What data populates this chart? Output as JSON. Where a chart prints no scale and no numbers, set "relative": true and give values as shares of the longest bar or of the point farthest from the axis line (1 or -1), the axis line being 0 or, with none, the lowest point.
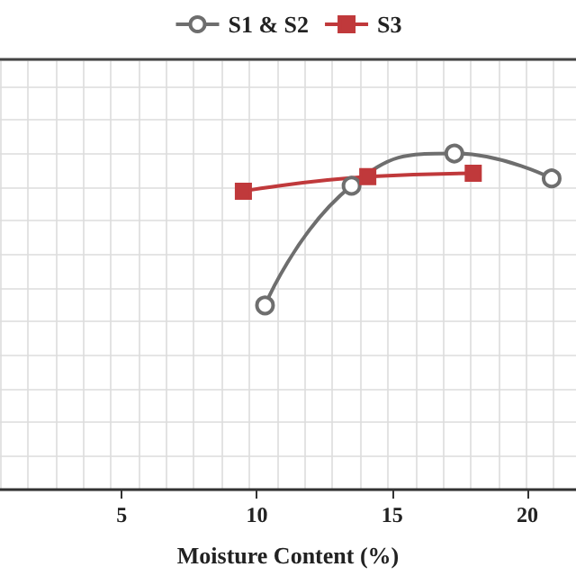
{
  "chart_data": {
    "type": "line",
    "xlabel": "Moisture Content (%)",
    "relative": true,
    "xlim": [
      0.5,
      21.8
    ],
    "xticks": [
      5,
      10,
      15,
      20
    ],
    "grid": true,
    "legend": "top",
    "series": [
      {
        "name": "S1 & S2",
        "color": "#6e6e6e",
        "marker": "circle",
        "x": [
          10.3,
          13.5,
          17.3,
          20.9
        ],
        "values": [
          0.548,
          0.904,
          1,
          0.926
        ]
      },
      {
        "name": "S3",
        "color": "#c0393b",
        "marker": "square",
        "x": [
          9.5,
          14.1,
          18.0
        ],
        "values": [
          0.888,
          0.931,
          0.941
        ]
      }
    ]
  }
}
